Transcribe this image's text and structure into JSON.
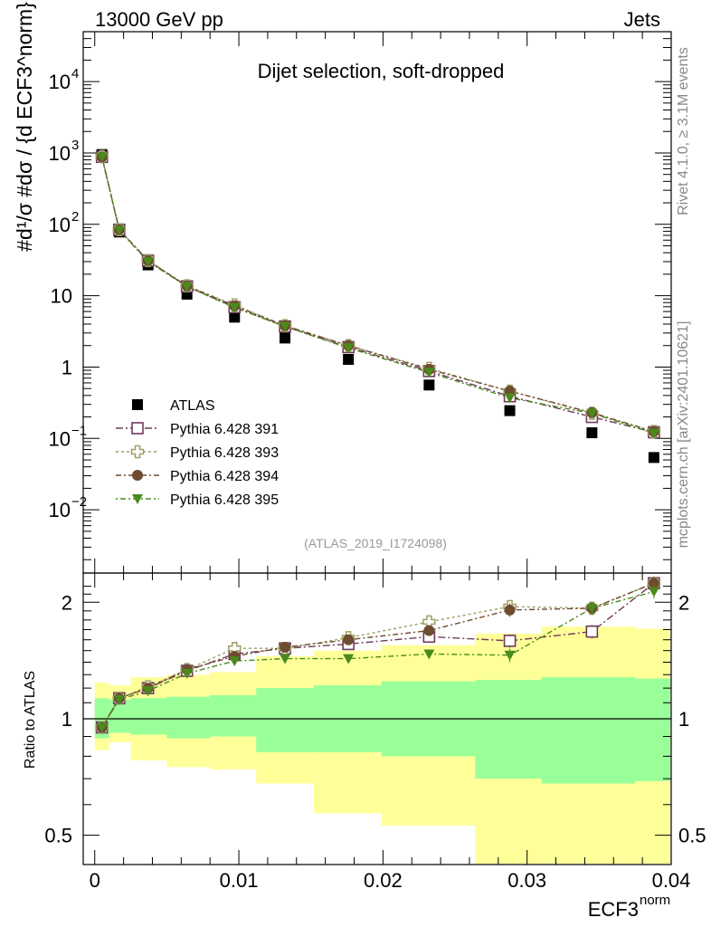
{
  "header": {
    "left": "13000 GeV pp",
    "right": "Jets"
  },
  "side_text": {
    "rivet": "Rivet 4.1.0, ≥ 3.1M events",
    "mcplots": "mcplots.cern.ch [arXiv:2401.10621]"
  },
  "colors": {
    "band_outer": "#ffff99",
    "band_inner": "#99ff99",
    "atlas": "#000000",
    "p391": "#6f3a5b",
    "p393": "#9e9e66",
    "p394": "#6e4c30",
    "p395": "#4a8a1c"
  },
  "chart_data": [
    {
      "type": "scatter",
      "panel": "main",
      "title": "Dijet selection, soft-dropped",
      "analysis_id": "(ATLAS_2019_I1724098)",
      "ylabel": "#d¹/σ  #dσ / {d ECF3^norm}",
      "yscale": "log",
      "ylim": [
        0.0013,
        50000
      ],
      "xlim": [
        -0.0008,
        0.04
      ],
      "y_ticks": [
        {
          "value": 0.01,
          "base": "10",
          "exp": "−2"
        },
        {
          "value": 0.1,
          "base": "10",
          "exp": "−1"
        },
        {
          "value": 1,
          "base": "1",
          "exp": ""
        },
        {
          "value": 10,
          "base": "10",
          "exp": ""
        },
        {
          "value": 100,
          "base": "10",
          "exp": "2"
        },
        {
          "value": 1000,
          "base": "10",
          "exp": "3"
        },
        {
          "value": 10000,
          "base": "10",
          "exp": "4"
        }
      ],
      "x": [
        0.0005,
        0.0017,
        0.0037,
        0.0064,
        0.0097,
        0.0132,
        0.0176,
        0.0232,
        0.0288,
        0.0345,
        0.0388
      ],
      "series": [
        {
          "name": "ATLAS",
          "marker": "square",
          "values": [
            950,
            78,
            27,
            10.5,
            5.0,
            2.55,
            1.28,
            0.56,
            0.245,
            0.12,
            0.054
          ]
        },
        {
          "name": "Pythia 6.428 391",
          "marker": "open-square",
          "values": [
            880,
            84,
            31,
            13.5,
            6.9,
            3.7,
            1.9,
            0.88,
            0.39,
            0.2,
            0.122
          ]
        },
        {
          "name": "Pythia 6.428 393",
          "marker": "open-cross",
          "values": [
            890,
            84,
            31,
            13.8,
            7.4,
            3.8,
            2.0,
            0.96,
            0.46,
            0.225,
            0.125
          ]
        },
        {
          "name": "Pythia 6.428 394",
          "marker": "circle",
          "values": [
            880,
            84,
            31,
            13.7,
            7.2,
            3.8,
            2.0,
            0.93,
            0.46,
            0.23,
            0.125
          ]
        },
        {
          "name": "Pythia 6.428 395",
          "marker": "triangle-down",
          "values": [
            880,
            82,
            30,
            13.4,
            6.8,
            3.7,
            1.85,
            0.84,
            0.37,
            0.225,
            0.118
          ]
        }
      ]
    },
    {
      "type": "scatter",
      "panel": "ratio",
      "xlabel": "ECF3",
      "xlabel_sup": "norm",
      "ylabel": "Ratio to ATLAS",
      "xlim": [
        -0.0008,
        0.04
      ],
      "ylim": [
        0.42,
        2.38
      ],
      "x_ticks": [
        0,
        0.01,
        0.02,
        0.03,
        0.04
      ],
      "x_tick_labels": [
        "0",
        "0.01",
        "0.02",
        "0.03",
        "0.04"
      ],
      "y_ticks": [
        0.5,
        1,
        2
      ],
      "y_tick_labels": [
        "0.5",
        "1",
        "2"
      ],
      "reference": 1,
      "bins": [
        {
          "x0": 0.0,
          "x1": 0.001,
          "outer": [
            0.83,
            1.24
          ],
          "inner": [
            0.89,
            1.13
          ]
        },
        {
          "x0": 0.001,
          "x1": 0.0025,
          "outer": [
            0.87,
            1.22
          ],
          "inner": [
            0.92,
            1.12
          ]
        },
        {
          "x0": 0.0025,
          "x1": 0.005,
          "outer": [
            0.78,
            1.28
          ],
          "inner": [
            0.91,
            1.13
          ]
        },
        {
          "x0": 0.005,
          "x1": 0.008,
          "outer": [
            0.75,
            1.3
          ],
          "inner": [
            0.89,
            1.14
          ]
        },
        {
          "x0": 0.008,
          "x1": 0.0112,
          "outer": [
            0.74,
            1.32
          ],
          "inner": [
            0.9,
            1.15
          ]
        },
        {
          "x0": 0.0112,
          "x1": 0.0152,
          "outer": [
            0.68,
            1.45
          ],
          "inner": [
            0.82,
            1.2
          ]
        },
        {
          "x0": 0.0152,
          "x1": 0.0199,
          "outer": [
            0.57,
            1.5
          ],
          "inner": [
            0.82,
            1.22
          ]
        },
        {
          "x0": 0.0199,
          "x1": 0.0264,
          "outer": [
            0.53,
            1.55
          ],
          "inner": [
            0.8,
            1.25
          ]
        },
        {
          "x0": 0.0264,
          "x1": 0.031,
          "outer": [
            0.37,
            1.66
          ],
          "inner": [
            0.7,
            1.26
          ]
        },
        {
          "x0": 0.031,
          "x1": 0.0375,
          "outer": [
            0.37,
            1.73
          ],
          "inner": [
            0.68,
            1.28
          ]
        },
        {
          "x0": 0.0375,
          "x1": 0.04,
          "outer": [
            0.37,
            1.71
          ],
          "inner": [
            0.69,
            1.27
          ]
        }
      ],
      "x": [
        0.0005,
        0.0017,
        0.0037,
        0.0064,
        0.0097,
        0.0132,
        0.0176,
        0.0232,
        0.0288,
        0.0345,
        0.0388
      ],
      "series": [
        {
          "name": "Pythia 6.428 391",
          "marker": "open-square",
          "values": [
            0.95,
            1.13,
            1.2,
            1.33,
            1.47,
            1.52,
            1.56,
            1.63,
            1.59,
            1.68,
            2.24
          ]
        },
        {
          "name": "Pythia 6.428 393",
          "marker": "open-cross",
          "values": [
            0.95,
            1.13,
            1.21,
            1.34,
            1.52,
            1.52,
            1.62,
            1.78,
            1.95,
            1.93,
            2.24
          ]
        },
        {
          "name": "Pythia 6.428 394",
          "marker": "circle",
          "values": [
            0.95,
            1.13,
            1.2,
            1.34,
            1.45,
            1.53,
            1.6,
            1.69,
            1.91,
            1.93,
            2.24
          ]
        },
        {
          "name": "Pythia 6.428 395",
          "marker": "triangle-down",
          "values": [
            0.95,
            1.12,
            1.18,
            1.31,
            1.41,
            1.43,
            1.43,
            1.47,
            1.46,
            1.93,
            2.13
          ]
        }
      ]
    }
  ]
}
